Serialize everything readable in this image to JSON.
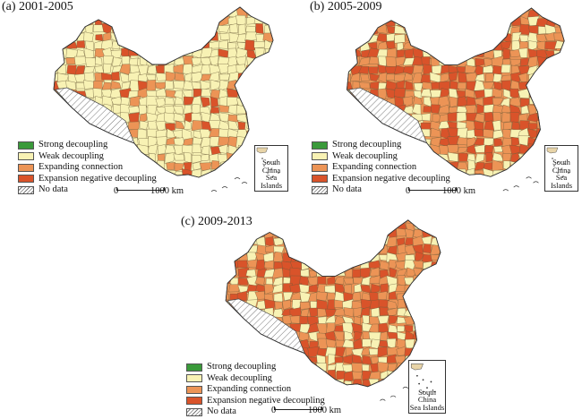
{
  "legend": {
    "items": [
      {
        "key": "strong",
        "label": "Strong decoupling",
        "color": "#3a9a3a"
      },
      {
        "key": "weak",
        "label": "Weak decoupling",
        "color": "#f8f2b4"
      },
      {
        "key": "expanding",
        "label": "Expanding connection",
        "color": "#ec9456"
      },
      {
        "key": "negative",
        "label": "Expansion negative decoupling",
        "color": "#d9532a"
      },
      {
        "key": "nodata",
        "label": "No data",
        "color": "hatch"
      }
    ]
  },
  "scale": {
    "zero": "0",
    "distance": "1000 km"
  },
  "inset_label_line1": "South China",
  "inset_label_line2": "Sea Islands",
  "panels": [
    {
      "id": "a",
      "title": "(a) 2001-2005",
      "dominant": "weak"
    },
    {
      "id": "b",
      "title": "(b) 2005-2009",
      "dominant": "expanding"
    },
    {
      "id": "c",
      "title": "(c) 2009-2013",
      "dominant": "expanding"
    }
  ]
}
